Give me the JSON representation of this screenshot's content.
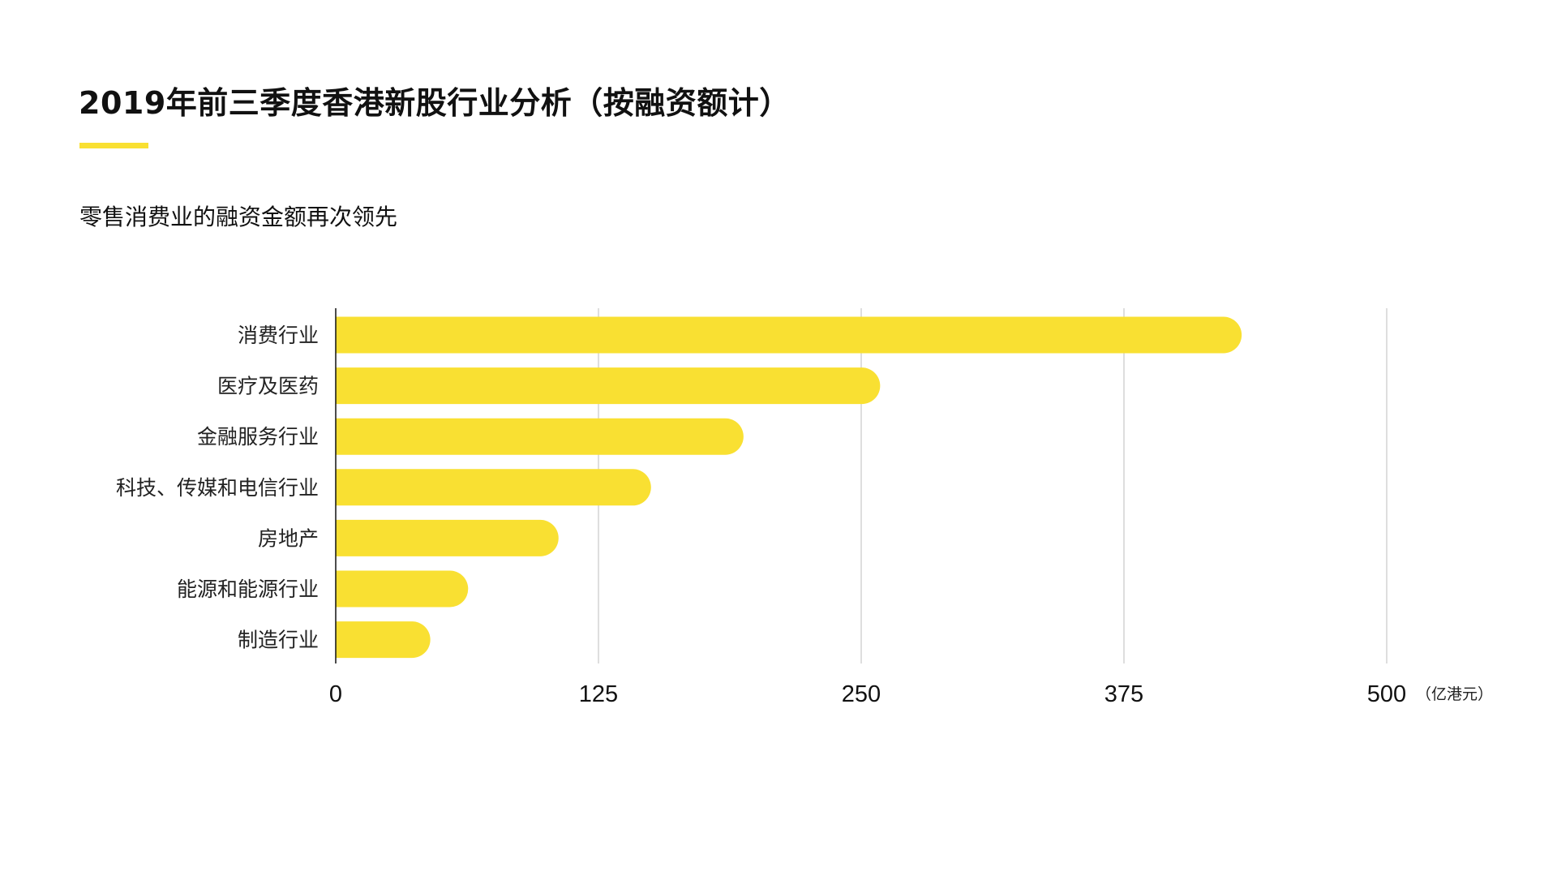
{
  "title": "2019年前三季度香港新股行业分析（按融资额计）",
  "subtitle": "零售消费业的融资金额再次领先",
  "colors": {
    "bar": "#f9e032",
    "accent": "#f9e032",
    "grid": "#d4d4d4",
    "axis": "#111111"
  },
  "chart_data": {
    "type": "bar",
    "orientation": "horizontal",
    "categories": [
      "消费行业",
      "医疗及医药",
      "金融服务行业",
      "科技、传媒和电信行业",
      "房地产",
      "能源和能源行业",
      "制造行业"
    ],
    "values": [
      431,
      259,
      194,
      150,
      106,
      63,
      45
    ],
    "xlim": [
      0,
      500
    ],
    "xticks": [
      0,
      125,
      250,
      375,
      500
    ],
    "tick_labels": [
      "0",
      "125",
      "250",
      "375",
      "500"
    ],
    "unit": "（亿港元）",
    "grid": true,
    "legend": "none"
  }
}
